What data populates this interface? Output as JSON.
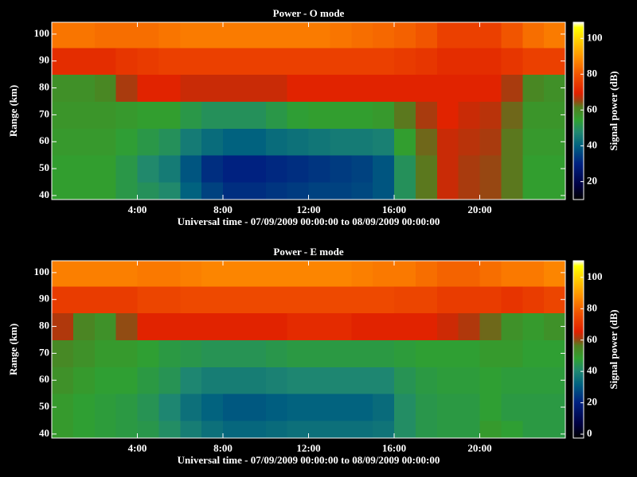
{
  "chart_data": [
    {
      "type": "heatmap",
      "title": "Power - O mode",
      "xlabel": "Universal time - 07/09/2009 00:00:00 to 08/09/2009 00:00:00",
      "ylabel": "Range (km)",
      "colorbar_label": "Signal power (dB)",
      "x_bins": [
        0,
        1,
        2,
        3,
        4,
        5,
        6,
        7,
        8,
        9,
        10,
        11,
        12,
        13,
        14,
        15,
        16,
        17,
        18,
        19,
        20,
        21,
        22,
        23,
        24
      ],
      "y_bins": [
        38.5,
        45,
        55,
        65,
        75,
        85,
        95,
        104.4
      ],
      "values": [
        [
          55,
          55,
          55,
          52,
          50,
          48,
          40,
          35,
          32,
          32,
          33,
          34,
          35,
          35,
          36,
          38,
          50,
          62,
          68,
          66,
          65,
          62,
          55,
          55
        ],
        [
          55,
          55,
          55,
          52,
          48,
          45,
          38,
          32,
          30,
          30,
          31,
          32,
          33,
          34,
          35,
          38,
          50,
          62,
          68,
          66,
          65,
          62,
          55,
          55
        ],
        [
          56,
          56,
          56,
          54,
          52,
          50,
          45,
          42,
          40,
          40,
          42,
          43,
          44,
          45,
          45,
          46,
          55,
          63,
          68,
          67,
          66,
          62,
          56,
          56
        ],
        [
          57,
          57,
          57,
          56,
          55,
          55,
          52,
          50,
          50,
          50,
          52,
          54,
          55,
          55,
          55,
          56,
          62,
          66,
          70,
          68,
          67,
          63,
          57,
          57
        ],
        [
          58,
          58,
          60,
          66,
          70,
          70,
          68,
          68,
          68,
          68,
          68,
          70,
          70,
          70,
          70,
          70,
          70,
          70,
          70,
          70,
          70,
          66,
          60,
          58
        ],
        [
          72,
          72,
          72,
          74,
          75,
          76,
          76,
          76,
          76,
          76,
          76,
          76,
          76,
          76,
          76,
          76,
          75,
          74,
          72,
          72,
          72,
          74,
          76,
          76
        ],
        [
          85,
          85,
          84,
          84,
          84,
          85,
          86,
          86,
          86,
          86,
          86,
          86,
          86,
          85,
          84,
          83,
          82,
          80,
          76,
          76,
          76,
          80,
          84,
          86
        ]
      ],
      "xlim": [
        0,
        24
      ],
      "ylim": [
        38.5,
        104.4
      ],
      "xticks": [
        {
          "value": 4,
          "label": "4:00"
        },
        {
          "value": 8,
          "label": "8:00"
        },
        {
          "value": 12,
          "label": "12:00"
        },
        {
          "value": 16,
          "label": "16:00"
        },
        {
          "value": 20,
          "label": "20:00"
        }
      ],
      "yticks": [
        40,
        50,
        60,
        70,
        80,
        90,
        100
      ],
      "clim": [
        10,
        109
      ],
      "cticks": [
        20,
        40,
        60,
        80,
        100
      ]
    },
    {
      "type": "heatmap",
      "title": "Power - E mode",
      "xlabel": "Universal time - 07/09/2009 00:00:00 to 08/09/2009 00:00:00",
      "ylabel": "Range (km)",
      "colorbar_label": "Signal power (dB)",
      "x_bins": [
        0,
        1,
        2,
        3,
        4,
        5,
        6,
        7,
        8,
        9,
        10,
        11,
        12,
        13,
        14,
        15,
        16,
        17,
        18,
        19,
        20,
        21,
        22,
        23,
        24
      ],
      "y_bins": [
        38.5,
        45,
        55,
        65,
        75,
        85,
        95,
        104.4
      ],
      "values": [
        [
          50,
          48,
          47,
          46,
          45,
          42,
          38,
          35,
          33,
          33,
          34,
          35,
          35,
          35,
          35,
          36,
          42,
          45,
          46,
          46,
          50,
          48,
          46,
          46
        ],
        [
          50,
          48,
          47,
          46,
          44,
          40,
          35,
          32,
          30,
          30,
          31,
          32,
          32,
          32,
          32,
          34,
          42,
          45,
          46,
          46,
          48,
          46,
          46,
          46
        ],
        [
          52,
          50,
          48,
          48,
          46,
          44,
          40,
          38,
          38,
          38,
          39,
          40,
          40,
          40,
          40,
          40,
          44,
          46,
          47,
          47,
          48,
          47,
          47,
          47
        ],
        [
          54,
          52,
          50,
          50,
          48,
          46,
          45,
          44,
          44,
          44,
          45,
          46,
          46,
          46,
          46,
          46,
          47,
          48,
          48,
          48,
          50,
          50,
          48,
          48
        ],
        [
          62,
          55,
          52,
          60,
          66,
          66,
          66,
          66,
          66,
          66,
          66,
          68,
          68,
          68,
          66,
          66,
          66,
          66,
          64,
          62,
          58,
          52,
          50,
          52
        ],
        [
          72,
          72,
          72,
          72,
          74,
          74,
          75,
          75,
          75,
          75,
          75,
          75,
          75,
          75,
          75,
          75,
          74,
          74,
          72,
          72,
          72,
          70,
          72,
          74
        ],
        [
          85,
          85,
          85,
          85,
          84,
          84,
          85,
          86,
          86,
          86,
          86,
          86,
          86,
          86,
          85,
          84,
          84,
          82,
          80,
          80,
          82,
          84,
          84,
          86
        ]
      ],
      "xlim": [
        0,
        24
      ],
      "ylim": [
        38.5,
        104.4
      ],
      "xticks": [
        {
          "value": 4,
          "label": "4:00"
        },
        {
          "value": 8,
          "label": "8:00"
        },
        {
          "value": 12,
          "label": "12:00"
        },
        {
          "value": 16,
          "label": "16:00"
        },
        {
          "value": 20,
          "label": "20:00"
        }
      ],
      "yticks": [
        40,
        50,
        60,
        70,
        80,
        90,
        100
      ],
      "clim": [
        -2.5,
        110.6
      ],
      "cticks": [
        0,
        20,
        40,
        60,
        80,
        100
      ]
    }
  ]
}
